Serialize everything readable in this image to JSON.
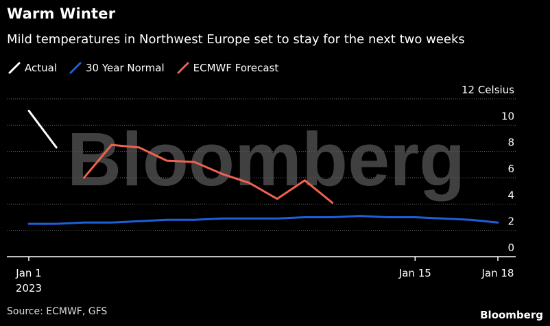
{
  "header": {
    "title": "Warm Winter",
    "subtitle": "Mild temperatures in Northwest Europe set to stay for the next two weeks"
  },
  "footer": {
    "source": "Source: ECMWF, GFS",
    "brand": "Bloomberg"
  },
  "watermark": "Bloomberg",
  "chart_data": {
    "type": "line",
    "title": "Warm Winter",
    "subtitle": "Mild temperatures in Northwest Europe set to stay for the next two weeks",
    "ylabel": "Celsius",
    "ylim": [
      0,
      12
    ],
    "yticks": [
      0,
      2,
      4,
      6,
      8,
      10,
      12
    ],
    "ytick_labels": [
      "0",
      "2",
      "4",
      "6",
      "8",
      "10",
      "12 Celsius"
    ],
    "xlim": [
      "2023-01-01",
      "2023-01-18"
    ],
    "xticks": [
      {
        "date": "2023-01-01",
        "label": "Jan 1",
        "sublabel": "2023"
      },
      {
        "date": "2023-01-15",
        "label": "Jan 15",
        "sublabel": ""
      },
      {
        "date": "2023-01-18",
        "label": "Jan 18",
        "sublabel": ""
      }
    ],
    "grid": true,
    "legend_position": "top-left",
    "series": [
      {
        "name": "Actual",
        "color": "#ffffff",
        "x": [
          "2023-01-01",
          "2023-01-02"
        ],
        "y": [
          11.1,
          8.3
        ]
      },
      {
        "name": "30 Year Normal",
        "color": "#1e5fdb",
        "x": [
          "2023-01-01",
          "2023-01-02",
          "2023-01-03",
          "2023-01-04",
          "2023-01-05",
          "2023-01-06",
          "2023-01-07",
          "2023-01-08",
          "2023-01-09",
          "2023-01-10",
          "2023-01-11",
          "2023-01-12",
          "2023-01-13",
          "2023-01-14",
          "2023-01-15",
          "2023-01-16",
          "2023-01-17",
          "2023-01-18"
        ],
        "y": [
          2.5,
          2.5,
          2.6,
          2.6,
          2.7,
          2.8,
          2.8,
          2.9,
          2.9,
          2.9,
          3.0,
          3.0,
          3.1,
          3.0,
          3.0,
          2.9,
          2.8,
          2.6
        ]
      },
      {
        "name": "ECMWF Forecast",
        "color": "#f0624f",
        "x": [
          "2023-01-03",
          "2023-01-04",
          "2023-01-05",
          "2023-01-06",
          "2023-01-07",
          "2023-01-08",
          "2023-01-09",
          "2023-01-10",
          "2023-01-11",
          "2023-01-12"
        ],
        "y": [
          6.0,
          8.5,
          8.3,
          7.3,
          7.2,
          6.3,
          5.6,
          4.4,
          5.8,
          4.1
        ]
      }
    ]
  }
}
